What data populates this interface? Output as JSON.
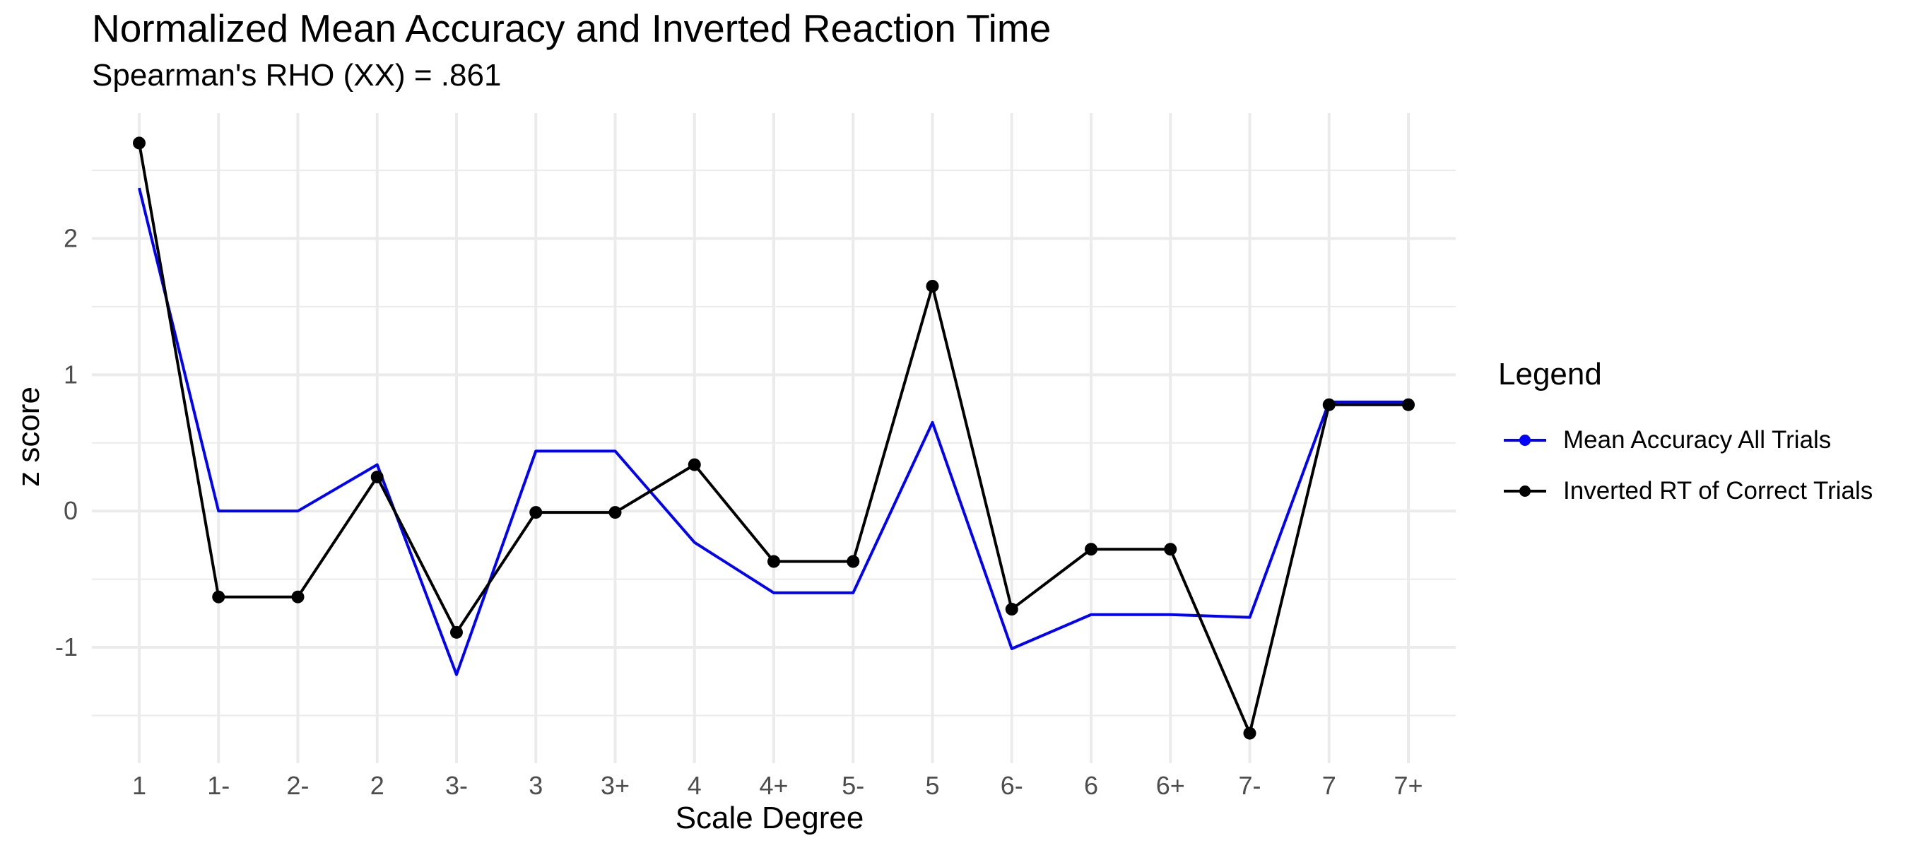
{
  "chart_data": {
    "type": "line",
    "title": "Normalized Mean Accuracy and Inverted Reaction Time",
    "subtitle": "Spearman's RHO (XX) = .861",
    "xlabel": "Scale Degree",
    "ylabel": "z score",
    "categories": [
      "1",
      "1-",
      "2-",
      "2",
      "3-",
      "3",
      "3+",
      "4",
      "4+",
      "5-",
      "5",
      "6-",
      "6",
      "6+",
      "7-",
      "7",
      "7+"
    ],
    "yticks": [
      -1,
      0,
      1,
      2
    ],
    "ytick_labels": [
      "-1",
      "0",
      "1",
      "2"
    ],
    "ylim": [
      -1.85,
      2.92
    ],
    "grid": true,
    "legend_position": "right",
    "legend_title": "Legend",
    "series": [
      {
        "name": "Mean Accuracy All Trials",
        "color": "#0000ff",
        "markers": false,
        "values": [
          2.37,
          0.0,
          0.0,
          0.34,
          -1.2,
          0.44,
          0.44,
          -0.23,
          -0.6,
          -0.6,
          0.65,
          -1.01,
          -0.76,
          -0.76,
          -0.78,
          0.8,
          0.8
        ]
      },
      {
        "name": "Inverted RT of Correct Trials",
        "color": "#000000",
        "markers": true,
        "values": [
          2.7,
          -0.63,
          -0.63,
          0.25,
          -0.89,
          -0.01,
          -0.01,
          0.34,
          -0.37,
          -0.37,
          1.65,
          -0.72,
          -0.28,
          -0.28,
          -1.63,
          0.78,
          0.78
        ]
      }
    ]
  }
}
